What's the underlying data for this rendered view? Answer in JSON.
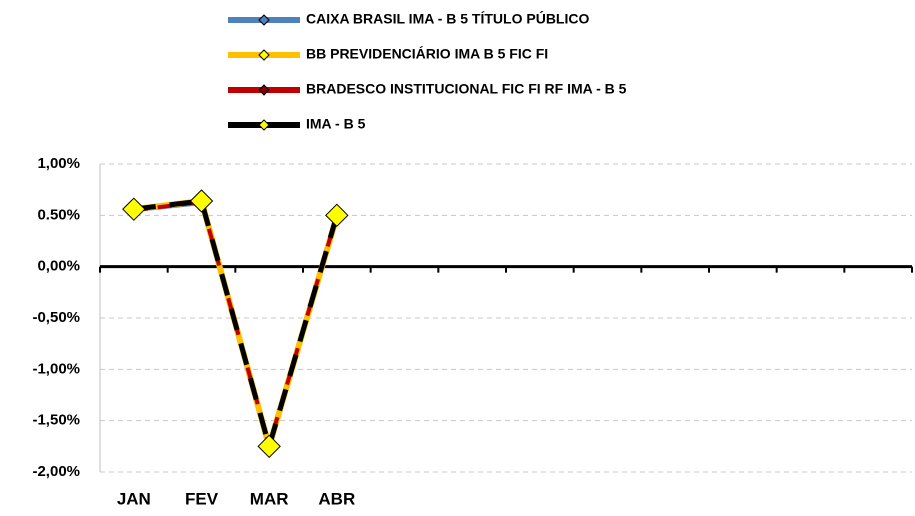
{
  "chart_data": {
    "type": "line",
    "categories": [
      "JAN",
      "FEV",
      "MAR",
      "ABR",
      null,
      null,
      null,
      null,
      null,
      null,
      null,
      null
    ],
    "series": [
      {
        "name": "CAIXA BRASIL IMA - B 5 TÍTULO PÚBLICO",
        "color": "#4f81bd",
        "marker_color": "#4f81bd",
        "values": [
          0.55,
          0.62,
          -1.74,
          0.48,
          null,
          null,
          null,
          null,
          null,
          null,
          null,
          null
        ]
      },
      {
        "name": "BB PREVIDENCIÁRIO IMA B 5 FIC FI",
        "color": "#ffc000",
        "marker_color": "#ffff00",
        "values": [
          0.56,
          0.64,
          -1.75,
          0.49,
          null,
          null,
          null,
          null,
          null,
          null,
          null,
          null
        ]
      },
      {
        "name": "BRADESCO INSTITUCIONAL FIC FI RF IMA - B 5",
        "color": "#c00000",
        "marker_color": "#800000",
        "values": [
          0.55,
          0.63,
          -1.74,
          0.5,
          null,
          null,
          null,
          null,
          null,
          null,
          null,
          null
        ]
      },
      {
        "name": "IMA - B 5",
        "color": "#000000",
        "marker_color": "#ffff00",
        "values": [
          0.56,
          0.64,
          -1.75,
          0.5,
          null,
          null,
          null,
          null,
          null,
          null,
          null,
          null
        ]
      }
    ],
    "ylim": [
      -2,
      1
    ],
    "yticks": [
      {
        "value": 1,
        "label": "1,00%"
      },
      {
        "value": 0.5,
        "label": "0.50%"
      },
      {
        "value": 0,
        "label": "0,00%"
      },
      {
        "value": -0.5,
        "label": "-0,50%"
      },
      {
        "value": -1,
        "label": "-1,00%"
      },
      {
        "value": -1.5,
        "label": "-1,50%"
      },
      {
        "value": -2,
        "label": "-2,00%"
      }
    ],
    "grid": true,
    "legend": "top"
  }
}
